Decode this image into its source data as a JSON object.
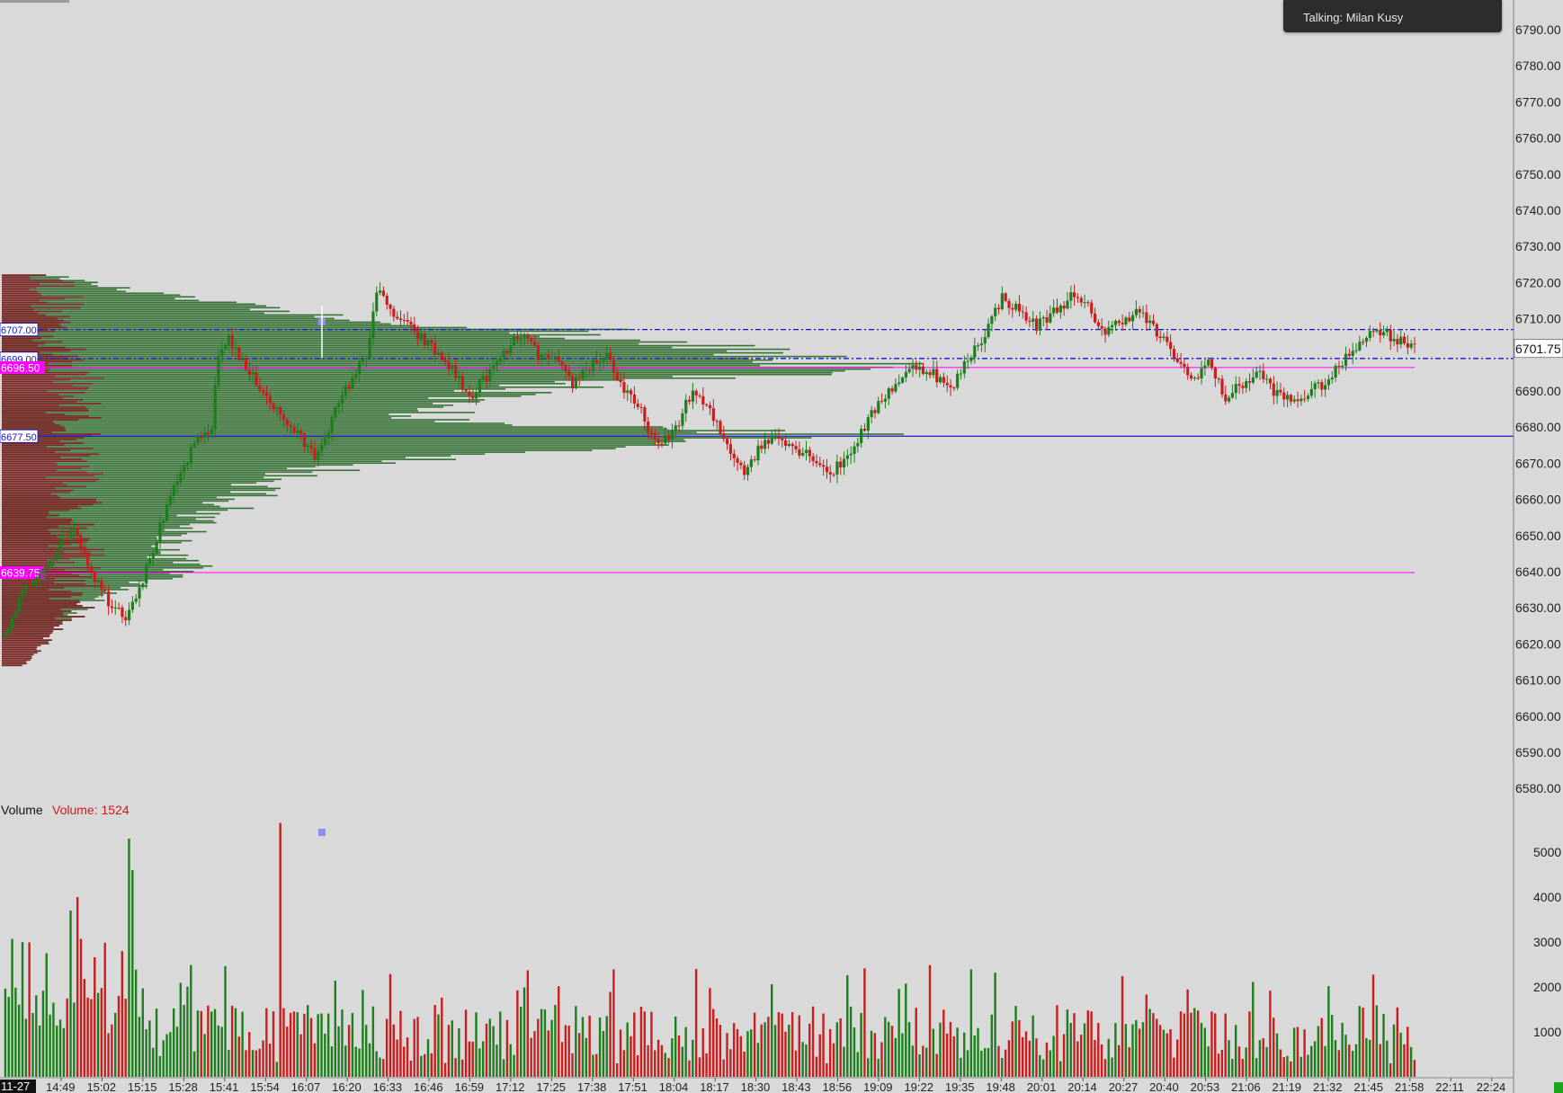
{
  "notification": {
    "text": "Talking: Milan Kusy"
  },
  "price_axis": {
    "ticks": [
      "6790.00",
      "6780.00",
      "6770.00",
      "6760.00",
      "6750.00",
      "6740.00",
      "6730.00",
      "6720.00",
      "6710.00",
      "6690.00",
      "6680.00",
      "6670.00",
      "6660.00",
      "6650.00",
      "6640.00",
      "6630.00",
      "6620.00",
      "6610.00",
      "6600.00",
      "6590.00",
      "6580.00"
    ],
    "last_price": "6701.75"
  },
  "volume_axis": {
    "ticks": [
      "5000",
      "4000",
      "3000",
      "2000",
      "1000"
    ]
  },
  "time_axis": {
    "start_label": "11-27",
    "labels": [
      "14:49",
      "15:02",
      "15:15",
      "15:28",
      "15:41",
      "15:54",
      "16:07",
      "16:20",
      "16:33",
      "16:46",
      "16:59",
      "17:12",
      "17:25",
      "17:38",
      "17:51",
      "18:04",
      "18:17",
      "18:30",
      "18:43",
      "18:56",
      "19:09",
      "19:22",
      "19:35",
      "19:48",
      "20:01",
      "20:14",
      "20:27",
      "20:40",
      "20:53",
      "21:06",
      "21:19",
      "21:32",
      "21:45",
      "21:58",
      "22:11",
      "22:24"
    ]
  },
  "levels": [
    {
      "label": "6707.00",
      "price": 6707.0,
      "style": "dashdot",
      "color": "#1515c8"
    },
    {
      "label": "6699.00",
      "price": 6699.0,
      "style": "dashdot",
      "color": "#1515c8"
    },
    {
      "label": "6696.50",
      "price": 6696.5,
      "style": "solid",
      "color": "#ff00ff"
    },
    {
      "label": "6677.50",
      "price": 6677.5,
      "style": "solid",
      "color": "#1515c8"
    },
    {
      "label": "6639.75",
      "price": 6639.75,
      "style": "solid",
      "color": "#ff00ff"
    }
  ],
  "volume_panel": {
    "title": "Volume",
    "value_label": "Volume: 1524"
  },
  "chart_data": {
    "type": "candlestick",
    "price_range": [
      6575,
      6795
    ],
    "volume_range": [
      0,
      5800
    ],
    "colors": {
      "up": "#1e7e1e",
      "down": "#c81e1e",
      "profile_bar": "#7a2020",
      "profile_delta": "#2e6e2e"
    },
    "close_path_anchors": [
      [
        0,
        6622
      ],
      [
        5,
        6634
      ],
      [
        10,
        6640
      ],
      [
        15,
        6646
      ],
      [
        20,
        6653
      ],
      [
        25,
        6640
      ],
      [
        30,
        6632
      ],
      [
        35,
        6628
      ],
      [
        40,
        6638
      ],
      [
        45,
        6652
      ],
      [
        50,
        6665
      ],
      [
        55,
        6675
      ],
      [
        60,
        6680
      ],
      [
        62,
        6700
      ],
      [
        65,
        6705
      ],
      [
        70,
        6696
      ],
      [
        75,
        6690
      ],
      [
        80,
        6683
      ],
      [
        85,
        6678
      ],
      [
        90,
        6672
      ],
      [
        95,
        6682
      ],
      [
        100,
        6692
      ],
      [
        105,
        6700
      ],
      [
        108,
        6718
      ],
      [
        112,
        6712
      ],
      [
        118,
        6707
      ],
      [
        124,
        6702
      ],
      [
        130,
        6696
      ],
      [
        135,
        6688
      ],
      [
        140,
        6694
      ],
      [
        145,
        6700
      ],
      [
        150,
        6706
      ],
      [
        155,
        6700
      ],
      [
        160,
        6698
      ],
      [
        165,
        6692
      ],
      [
        170,
        6697
      ],
      [
        175,
        6700
      ],
      [
        180,
        6690
      ],
      [
        185,
        6684
      ],
      [
        190,
        6674
      ],
      [
        195,
        6680
      ],
      [
        200,
        6690
      ],
      [
        205,
        6684
      ],
      [
        210,
        6675
      ],
      [
        215,
        6668
      ],
      [
        220,
        6675
      ],
      [
        225,
        6678
      ],
      [
        230,
        6674
      ],
      [
        235,
        6672
      ],
      [
        240,
        6667
      ],
      [
        245,
        6672
      ],
      [
        250,
        6680
      ],
      [
        255,
        6688
      ],
      [
        260,
        6693
      ],
      [
        265,
        6697
      ],
      [
        270,
        6695
      ],
      [
        275,
        6690
      ],
      [
        280,
        6699
      ],
      [
        285,
        6706
      ],
      [
        290,
        6716
      ],
      [
        295,
        6712
      ],
      [
        300,
        6708
      ],
      [
        305,
        6712
      ],
      [
        310,
        6716
      ],
      [
        315,
        6713
      ],
      [
        320,
        6706
      ],
      [
        325,
        6710
      ],
      [
        330,
        6712
      ],
      [
        335,
        6706
      ],
      [
        340,
        6700
      ],
      [
        345,
        6693
      ],
      [
        350,
        6698
      ],
      [
        355,
        6688
      ],
      [
        360,
        6692
      ],
      [
        365,
        6695
      ],
      [
        370,
        6689
      ],
      [
        375,
        6687
      ],
      [
        380,
        6690
      ],
      [
        385,
        6693
      ],
      [
        390,
        6699
      ],
      [
        395,
        6705
      ],
      [
        400,
        6707
      ],
      [
        405,
        6704
      ],
      [
        410,
        6703
      ]
    ],
    "volume_spikes": {
      "36": 5300,
      "80": 5650,
      "37": 4600,
      "19": 3700,
      "21": 4000
    },
    "volume_profile_shape": [
      [
        6722,
        0.05
      ],
      [
        6718,
        0.12
      ],
      [
        6714,
        0.22
      ],
      [
        6710,
        0.32
      ],
      [
        6707,
        0.55
      ],
      [
        6704,
        0.62
      ],
      [
        6700,
        0.75
      ],
      [
        6697,
        0.88
      ],
      [
        6694,
        0.7
      ],
      [
        6690,
        0.5
      ],
      [
        6686,
        0.4
      ],
      [
        6682,
        0.45
      ],
      [
        6678,
        0.78
      ],
      [
        6674,
        0.55
      ],
      [
        6670,
        0.35
      ],
      [
        6665,
        0.27
      ],
      [
        6660,
        0.24
      ],
      [
        6655,
        0.2
      ],
      [
        6650,
        0.18
      ],
      [
        6645,
        0.16
      ],
      [
        6641,
        0.19
      ],
      [
        6637,
        0.14
      ],
      [
        6632,
        0.09
      ],
      [
        6627,
        0.07
      ],
      [
        6622,
        0.05
      ],
      [
        6617,
        0.03
      ],
      [
        6614,
        0.02
      ]
    ]
  }
}
